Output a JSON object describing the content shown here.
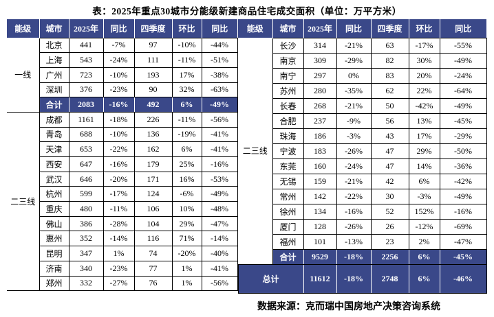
{
  "title": "表：2025年重点30城市分能级新建商品住宅成交面积（单位：万平方米）",
  "source": "数据来源：克而瑞中国房地产决策咨询系统",
  "colors": {
    "navy": "#3A4889",
    "grid": "#000000",
    "header_text": "#FFFFFF"
  },
  "columns": [
    "能级",
    "城市",
    "2025年",
    "同比",
    "四季度",
    "环比",
    "同比"
  ],
  "left_table": {
    "tiers": [
      {
        "label": "一线",
        "cities": [
          [
            "北京",
            "441",
            "-7%",
            "97",
            "-10%",
            "-44%"
          ],
          [
            "上海",
            "543",
            "-24%",
            "111",
            "-11%",
            "-51%"
          ],
          [
            "广州",
            "723",
            "-10%",
            "193",
            "17%",
            "-38%"
          ],
          [
            "深圳",
            "376",
            "-23%",
            "90",
            "32%",
            "-63%"
          ]
        ],
        "total": [
          "合计",
          "2083",
          "-16%",
          "492",
          "6%",
          "-49%"
        ]
      },
      {
        "label": "二三线",
        "cities": [
          [
            "成都",
            "1161",
            "-18%",
            "226",
            "-11%",
            "-56%"
          ],
          [
            "青岛",
            "688",
            "-10%",
            "136",
            "-19%",
            "-41%"
          ],
          [
            "天津",
            "653",
            "-22%",
            "162",
            "6%",
            "-41%"
          ],
          [
            "西安",
            "647",
            "-16%",
            "179",
            "25%",
            "-16%"
          ],
          [
            "武汉",
            "646",
            "-20%",
            "171",
            "16%",
            "-53%"
          ],
          [
            "杭州",
            "599",
            "-17%",
            "124",
            "-6%",
            "-49%"
          ],
          [
            "重庆",
            "480",
            "-11%",
            "106",
            "10%",
            "-48%"
          ],
          [
            "佛山",
            "386",
            "-28%",
            "104",
            "29%",
            "-47%"
          ],
          [
            "惠州",
            "352",
            "-14%",
            "116",
            "71%",
            "-14%"
          ],
          [
            "昆明",
            "347",
            "1%",
            "74",
            "-20%",
            "-40%"
          ],
          [
            "济南",
            "340",
            "-23%",
            "77",
            "1%",
            "-41%"
          ],
          [
            "郑州",
            "332",
            "-27%",
            "76",
            "1%",
            "-56%"
          ]
        ],
        "total": null
      }
    ]
  },
  "right_table": {
    "tiers": [
      {
        "label": "二三线",
        "cities": [
          [
            "长沙",
            "314",
            "-21%",
            "63",
            "-17%",
            "-55%"
          ],
          [
            "南京",
            "309",
            "-29%",
            "82",
            "30%",
            "-49%"
          ],
          [
            "南宁",
            "297",
            "0%",
            "83",
            "20%",
            "-24%"
          ],
          [
            "苏州",
            "280",
            "-35%",
            "62",
            "22%",
            "-64%"
          ],
          [
            "长春",
            "268",
            "-21%",
            "50",
            "-42%",
            "-49%"
          ],
          [
            "合肥",
            "237",
            "-9%",
            "56",
            "13%",
            "-45%"
          ],
          [
            "珠海",
            "186",
            "-3%",
            "43",
            "17%",
            "-29%"
          ],
          [
            "宁波",
            "183",
            "-26%",
            "47",
            "29%",
            "-50%"
          ],
          [
            "东莞",
            "160",
            "-24%",
            "47",
            "14%",
            "-36%"
          ],
          [
            "无锡",
            "159",
            "-21%",
            "42",
            "6%",
            "-42%"
          ],
          [
            "常州",
            "142",
            "-22%",
            "30",
            "-3%",
            "-49%"
          ],
          [
            "徐州",
            "134",
            "-16%",
            "52",
            "152%",
            "-16%"
          ],
          [
            "厦门",
            "128",
            "-26%",
            "26",
            "-12%",
            "-69%"
          ],
          [
            "福州",
            "101",
            "-13%",
            "23",
            "2%",
            "-47%"
          ]
        ],
        "total": [
          "合计",
          "9529",
          "-18%",
          "2256",
          "6%",
          "-45%"
        ]
      }
    ],
    "grand_total": [
      "总计",
      "11612",
      "-18%",
      "2748",
      "6%",
      "-46%"
    ]
  }
}
